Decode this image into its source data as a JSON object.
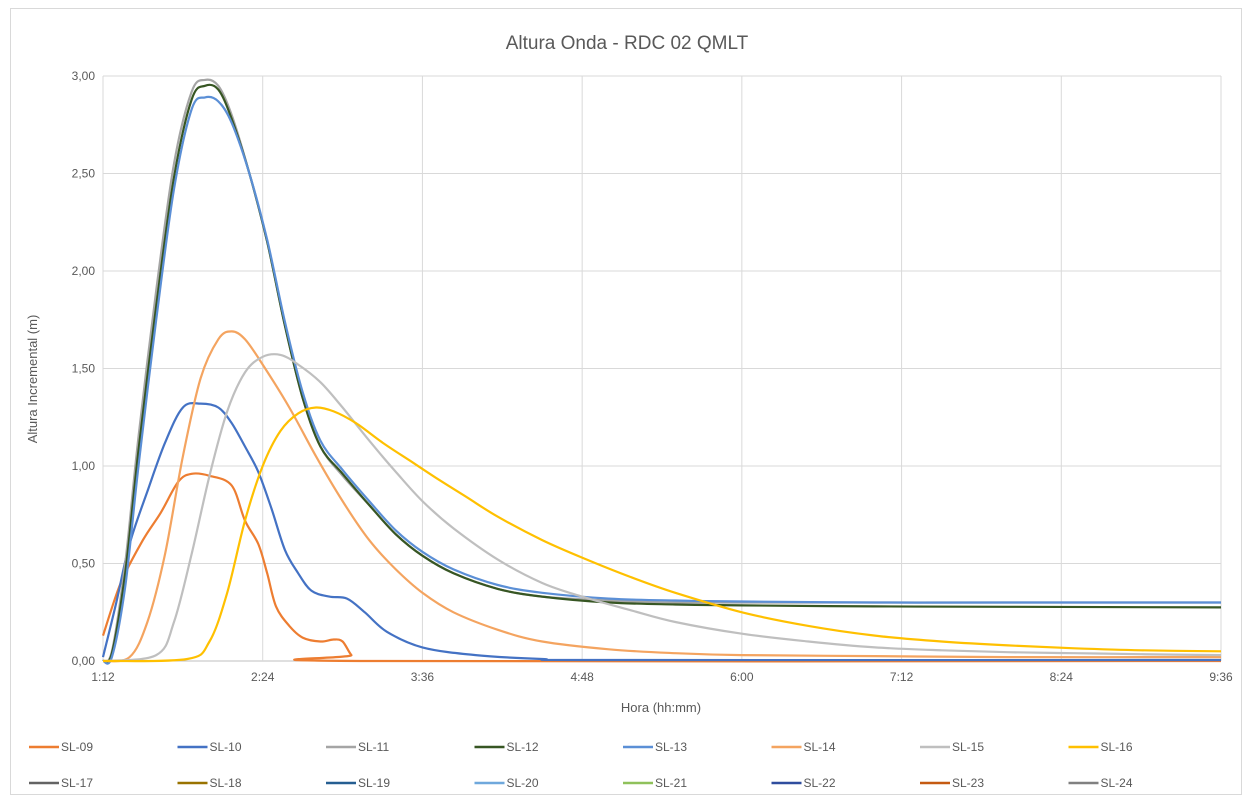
{
  "chart_data": {
    "type": "line",
    "title": "Altura Onda - RDC 02 QMLT",
    "xlabel": "Hora (hh:mm)",
    "ylabel": "Altura Incremental (m)",
    "xlim": [
      "1:12",
      "9:36"
    ],
    "ylim": [
      0,
      3
    ],
    "x_ticks": [
      "1:12",
      "2:24",
      "3:36",
      "4:48",
      "6:00",
      "7:12",
      "8:24",
      "9:36"
    ],
    "y_ticks": [
      "0,00",
      "0,50",
      "1,00",
      "1,50",
      "2,00",
      "2,50",
      "3,00"
    ],
    "grid": true,
    "legend_position": "bottom",
    "series": [
      {
        "name": "SL-09",
        "color": "#ED7D31",
        "points": [
          [
            "1:12",
            0.13
          ],
          [
            "1:20",
            0.4
          ],
          [
            "1:30",
            0.62
          ],
          [
            "1:38",
            0.76
          ],
          [
            "1:46",
            0.92
          ],
          [
            "1:52",
            0.96
          ],
          [
            "2:00",
            0.95
          ],
          [
            "2:10",
            0.9
          ],
          [
            "2:16",
            0.72
          ],
          [
            "2:22",
            0.6
          ],
          [
            "2:26",
            0.45
          ],
          [
            "2:30",
            0.28
          ],
          [
            "2:36",
            0.18
          ],
          [
            "2:42",
            0.12
          ],
          [
            "2:50",
            0.1
          ],
          [
            "2:56",
            0.11
          ],
          [
            "3:00",
            0.1
          ],
          [
            "3:04",
            0.03
          ],
          [
            "3:08",
            0.0
          ],
          [
            "9:36",
            0.0
          ]
        ]
      },
      {
        "name": "SL-10",
        "color": "#4472C4",
        "points": [
          [
            "1:12",
            0.02
          ],
          [
            "1:18",
            0.3
          ],
          [
            "1:24",
            0.6
          ],
          [
            "1:32",
            0.87
          ],
          [
            "1:40",
            1.12
          ],
          [
            "1:48",
            1.3
          ],
          [
            "1:56",
            1.32
          ],
          [
            "2:04",
            1.3
          ],
          [
            "2:10",
            1.22
          ],
          [
            "2:16",
            1.1
          ],
          [
            "2:22",
            0.97
          ],
          [
            "2:28",
            0.78
          ],
          [
            "2:34",
            0.57
          ],
          [
            "2:40",
            0.45
          ],
          [
            "2:46",
            0.36
          ],
          [
            "2:54",
            0.33
          ],
          [
            "3:02",
            0.32
          ],
          [
            "3:10",
            0.25
          ],
          [
            "3:20",
            0.15
          ],
          [
            "3:36",
            0.07
          ],
          [
            "4:00",
            0.03
          ],
          [
            "4:30",
            0.01
          ],
          [
            "5:00",
            0.005
          ],
          [
            "9:36",
            0.005
          ]
        ]
      },
      {
        "name": "SL-11",
        "color": "#A5A5A5",
        "points": [
          [
            "1:12",
            0.0
          ],
          [
            "1:16",
            0.05
          ],
          [
            "1:22",
            0.5
          ],
          [
            "1:28",
            1.15
          ],
          [
            "1:36",
            1.9
          ],
          [
            "1:44",
            2.55
          ],
          [
            "1:52",
            2.92
          ],
          [
            "1:58",
            2.98
          ],
          [
            "2:04",
            2.95
          ],
          [
            "2:10",
            2.8
          ],
          [
            "2:18",
            2.5
          ],
          [
            "2:26",
            2.15
          ],
          [
            "2:34",
            1.72
          ],
          [
            "2:42",
            1.35
          ],
          [
            "2:50",
            1.1
          ],
          [
            "3:00",
            0.95
          ],
          [
            "3:12",
            0.8
          ],
          [
            "3:24",
            0.65
          ],
          [
            "3:36",
            0.54
          ],
          [
            "3:50",
            0.45
          ],
          [
            "4:10",
            0.37
          ],
          [
            "4:30",
            0.33
          ],
          [
            "5:00",
            0.31
          ],
          [
            "5:30",
            0.3
          ],
          [
            "6:00",
            0.3
          ],
          [
            "7:00",
            0.3
          ],
          [
            "8:00",
            0.3
          ],
          [
            "9:36",
            0.3
          ]
        ]
      },
      {
        "name": "SL-12",
        "color": "#375623",
        "points": [
          [
            "1:12",
            0.0
          ],
          [
            "1:16",
            0.04
          ],
          [
            "1:22",
            0.45
          ],
          [
            "1:28",
            1.08
          ],
          [
            "1:36",
            1.82
          ],
          [
            "1:44",
            2.48
          ],
          [
            "1:52",
            2.88
          ],
          [
            "1:58",
            2.95
          ],
          [
            "2:04",
            2.93
          ],
          [
            "2:10",
            2.78
          ],
          [
            "2:18",
            2.5
          ],
          [
            "2:26",
            2.15
          ],
          [
            "2:34",
            1.72
          ],
          [
            "2:42",
            1.35
          ],
          [
            "2:50",
            1.1
          ],
          [
            "3:00",
            0.96
          ],
          [
            "3:12",
            0.8
          ],
          [
            "3:24",
            0.65
          ],
          [
            "3:36",
            0.54
          ],
          [
            "3:50",
            0.45
          ],
          [
            "4:10",
            0.37
          ],
          [
            "4:30",
            0.33
          ],
          [
            "5:00",
            0.3
          ],
          [
            "5:30",
            0.29
          ],
          [
            "6:00",
            0.285
          ],
          [
            "7:00",
            0.28
          ],
          [
            "8:00",
            0.278
          ],
          [
            "9:36",
            0.275
          ]
        ]
      },
      {
        "name": "SL-13",
        "color": "#5B8FD6",
        "points": [
          [
            "1:12",
            0.0
          ],
          [
            "1:16",
            0.02
          ],
          [
            "1:22",
            0.38
          ],
          [
            "1:28",
            1.0
          ],
          [
            "1:36",
            1.75
          ],
          [
            "1:44",
            2.42
          ],
          [
            "1:52",
            2.83
          ],
          [
            "1:58",
            2.89
          ],
          [
            "2:04",
            2.87
          ],
          [
            "2:10",
            2.76
          ],
          [
            "2:18",
            2.5
          ],
          [
            "2:26",
            2.16
          ],
          [
            "2:34",
            1.74
          ],
          [
            "2:42",
            1.38
          ],
          [
            "2:50",
            1.13
          ],
          [
            "3:00",
            0.98
          ],
          [
            "3:12",
            0.82
          ],
          [
            "3:24",
            0.67
          ],
          [
            "3:36",
            0.56
          ],
          [
            "3:50",
            0.47
          ],
          [
            "4:10",
            0.39
          ],
          [
            "4:30",
            0.35
          ],
          [
            "5:00",
            0.32
          ],
          [
            "5:30",
            0.31
          ],
          [
            "6:00",
            0.305
          ],
          [
            "7:00",
            0.3
          ],
          [
            "8:00",
            0.3
          ],
          [
            "9:36",
            0.3
          ]
        ]
      },
      {
        "name": "SL-14",
        "color": "#F4A460",
        "points": [
          [
            "1:12",
            0.0
          ],
          [
            "1:24",
            0.02
          ],
          [
            "1:32",
            0.2
          ],
          [
            "1:40",
            0.55
          ],
          [
            "1:48",
            1.05
          ],
          [
            "1:56",
            1.45
          ],
          [
            "2:04",
            1.65
          ],
          [
            "2:10",
            1.69
          ],
          [
            "2:16",
            1.65
          ],
          [
            "2:24",
            1.52
          ],
          [
            "2:36",
            1.3
          ],
          [
            "2:48",
            1.05
          ],
          [
            "3:00",
            0.82
          ],
          [
            "3:12",
            0.62
          ],
          [
            "3:24",
            0.47
          ],
          [
            "3:36",
            0.35
          ],
          [
            "3:50",
            0.25
          ],
          [
            "4:10",
            0.16
          ],
          [
            "4:30",
            0.1
          ],
          [
            "5:00",
            0.06
          ],
          [
            "5:30",
            0.04
          ],
          [
            "6:00",
            0.03
          ],
          [
            "7:00",
            0.025
          ],
          [
            "8:00",
            0.02
          ],
          [
            "9:36",
            0.02
          ]
        ]
      },
      {
        "name": "SL-15",
        "color": "#BFBFBF",
        "points": [
          [
            "1:12",
            0.0
          ],
          [
            "1:36",
            0.03
          ],
          [
            "1:44",
            0.2
          ],
          [
            "1:52",
            0.55
          ],
          [
            "2:00",
            0.95
          ],
          [
            "2:08",
            1.28
          ],
          [
            "2:16",
            1.48
          ],
          [
            "2:24",
            1.56
          ],
          [
            "2:32",
            1.57
          ],
          [
            "2:40",
            1.52
          ],
          [
            "2:50",
            1.43
          ],
          [
            "3:00",
            1.3
          ],
          [
            "3:12",
            1.13
          ],
          [
            "3:24",
            0.97
          ],
          [
            "3:36",
            0.82
          ],
          [
            "3:50",
            0.68
          ],
          [
            "4:10",
            0.52
          ],
          [
            "4:30",
            0.4
          ],
          [
            "4:48",
            0.33
          ],
          [
            "5:10",
            0.26
          ],
          [
            "5:30",
            0.2
          ],
          [
            "6:00",
            0.14
          ],
          [
            "6:30",
            0.1
          ],
          [
            "7:00",
            0.07
          ],
          [
            "7:30",
            0.055
          ],
          [
            "8:00",
            0.045
          ],
          [
            "8:30",
            0.04
          ],
          [
            "9:00",
            0.035
          ],
          [
            "9:36",
            0.03
          ]
        ]
      },
      {
        "name": "SL-16",
        "color": "#FFC000",
        "points": [
          [
            "1:12",
            0.0
          ],
          [
            "1:50",
            0.01
          ],
          [
            "2:00",
            0.1
          ],
          [
            "2:08",
            0.35
          ],
          [
            "2:16",
            0.72
          ],
          [
            "2:24",
            1.0
          ],
          [
            "2:32",
            1.18
          ],
          [
            "2:40",
            1.27
          ],
          [
            "2:48",
            1.3
          ],
          [
            "2:56",
            1.28
          ],
          [
            "3:06",
            1.22
          ],
          [
            "3:18",
            1.12
          ],
          [
            "3:30",
            1.03
          ],
          [
            "3:42",
            0.94
          ],
          [
            "3:56",
            0.84
          ],
          [
            "4:10",
            0.74
          ],
          [
            "4:30",
            0.62
          ],
          [
            "4:48",
            0.53
          ],
          [
            "5:10",
            0.43
          ],
          [
            "5:30",
            0.35
          ],
          [
            "6:00",
            0.25
          ],
          [
            "6:30",
            0.18
          ],
          [
            "7:00",
            0.13
          ],
          [
            "7:30",
            0.1
          ],
          [
            "8:00",
            0.08
          ],
          [
            "8:30",
            0.065
          ],
          [
            "9:00",
            0.055
          ],
          [
            "9:36",
            0.05
          ]
        ]
      },
      {
        "name": "SL-17",
        "color": "#636363",
        "points": []
      },
      {
        "name": "SL-18",
        "color": "#997300",
        "points": []
      },
      {
        "name": "SL-19",
        "color": "#255E91",
        "points": []
      },
      {
        "name": "SL-20",
        "color": "#6FA8DC",
        "points": []
      },
      {
        "name": "SL-21",
        "color": "#8FC15B",
        "points": []
      },
      {
        "name": "SL-22",
        "color": "#2F4D9E",
        "points": []
      },
      {
        "name": "SL-23",
        "color": "#C55A11",
        "points": []
      },
      {
        "name": "SL-24",
        "color": "#808080",
        "points": []
      }
    ]
  }
}
